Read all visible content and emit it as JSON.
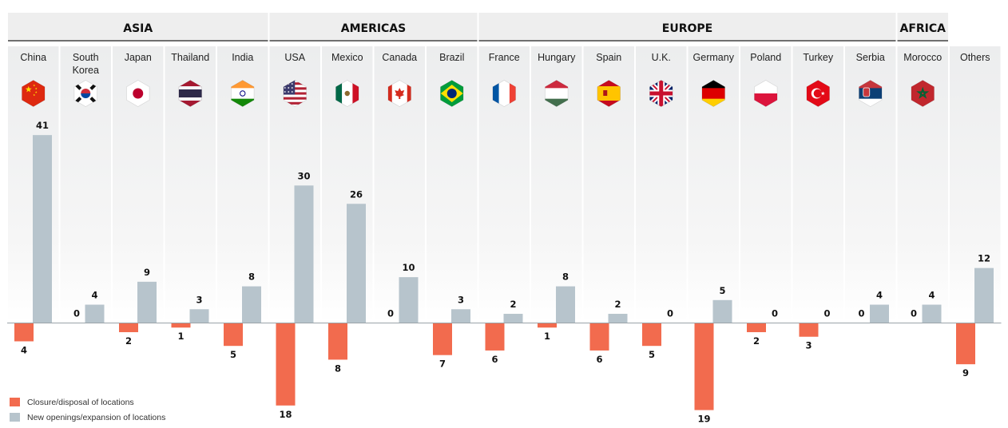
{
  "chart_data": {
    "type": "bar",
    "regions": [
      {
        "name": "ASIA",
        "count": 5
      },
      {
        "name": "AMERICAS",
        "count": 4
      },
      {
        "name": "EUROPE",
        "count": 8
      },
      {
        "name": "AFRICA",
        "count": 1
      }
    ],
    "categories": [
      "China",
      "South Korea",
      "Japan",
      "Thailand",
      "India",
      "USA",
      "Mexico",
      "Canada",
      "Brazil",
      "France",
      "Hungary",
      "Spain",
      "U.K.",
      "Germany",
      "Poland",
      "Turkey",
      "Serbia",
      "Morocco",
      "Others"
    ],
    "series": [
      {
        "name": "Closure/disposal of locations",
        "color": "#f26b4e",
        "direction": "down",
        "values": [
          4,
          0,
          2,
          1,
          5,
          18,
          8,
          0,
          7,
          6,
          1,
          6,
          5,
          19,
          2,
          3,
          0,
          0,
          9
        ]
      },
      {
        "name": "New openings/expansion of locations",
        "color": "#b7c4cc",
        "direction": "up",
        "values": [
          41,
          4,
          9,
          3,
          8,
          30,
          26,
          10,
          3,
          2,
          8,
          2,
          0,
          5,
          0,
          0,
          4,
          4,
          12
        ]
      }
    ],
    "flags": [
      "china-flag-icon",
      "south-korea-flag-icon",
      "japan-flag-icon",
      "thailand-flag-icon",
      "india-flag-icon",
      "usa-flag-icon",
      "mexico-flag-icon",
      "canada-flag-icon",
      "brazil-flag-icon",
      "france-flag-icon",
      "hungary-flag-icon",
      "spain-flag-icon",
      "uk-flag-icon",
      "germany-flag-icon",
      "poland-flag-icon",
      "turkey-flag-icon",
      "serbia-flag-icon",
      "morocco-flag-icon",
      null
    ],
    "legend": {
      "position": "bottom-left"
    }
  }
}
